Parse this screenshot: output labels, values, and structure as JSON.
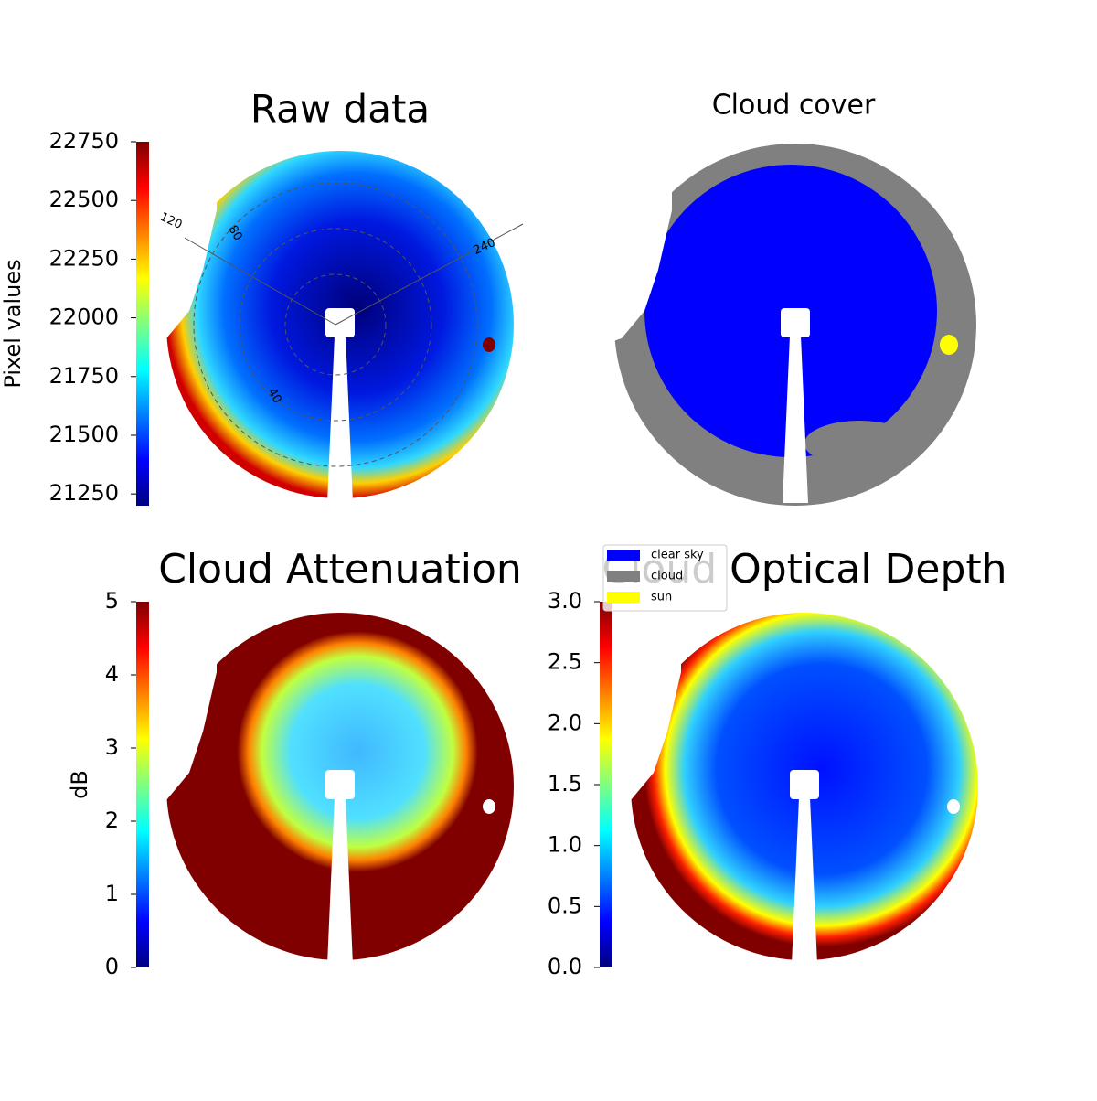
{
  "chart_data": [
    {
      "type": "colormap",
      "title": "Raw data",
      "colorbar_label": "Pixel values",
      "ylim": [
        21200,
        22750
      ],
      "yticks": [
        21250,
        21500,
        21750,
        22000,
        22250,
        22500,
        22750
      ],
      "annotations": [
        "120",
        "240",
        "80",
        "40"
      ]
    },
    {
      "type": "categorical",
      "title": "Cloud cover",
      "legend": "lower left",
      "series": [
        {
          "name": "clear sky",
          "color": "#0000ff"
        },
        {
          "name": "cloud",
          "color": "#808080"
        },
        {
          "name": "sun",
          "color": "#ffff00"
        }
      ]
    },
    {
      "type": "colormap",
      "title": "Cloud Attenuation",
      "colorbar_label": "dB",
      "ylim": [
        0,
        5
      ],
      "yticks": [
        0,
        1,
        2,
        3,
        4,
        5
      ]
    },
    {
      "type": "colormap",
      "title": "Cloud Optical Depth",
      "ylim": [
        0,
        3
      ],
      "yticks": [
        {
          "value": 0,
          "label": "0.0"
        },
        0.5,
        {
          "value": 1,
          "label": "1.0"
        },
        1.5,
        {
          "value": 2,
          "label": "2.0"
        },
        2.5,
        {
          "value": 3,
          "label": "3.0"
        }
      ]
    }
  ]
}
